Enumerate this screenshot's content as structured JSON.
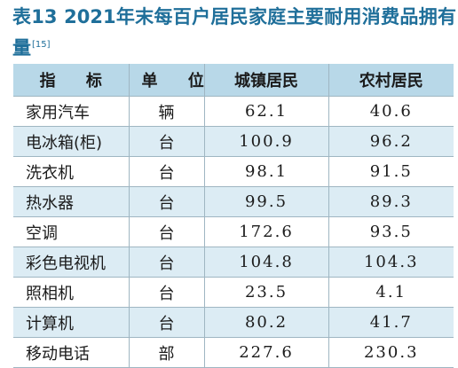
{
  "title": {
    "text": "表13  2021年末每百户居民家庭主要耐用消费品拥有量",
    "ref": "[15]"
  },
  "table": {
    "headers": [
      "指 标",
      "单 位",
      "城镇居民",
      "农村居民"
    ],
    "rows": [
      {
        "item": "家用汽车",
        "unit": "辆",
        "urban": "62.1",
        "rural": "40.6"
      },
      {
        "item": "电冰箱(柜)",
        "unit": "台",
        "urban": "100.9",
        "rural": "96.2"
      },
      {
        "item": "洗衣机",
        "unit": "台",
        "urban": "98.1",
        "rural": "91.5"
      },
      {
        "item": "热水器",
        "unit": "台",
        "urban": "99.5",
        "rural": "89.3"
      },
      {
        "item": "空调",
        "unit": "台",
        "urban": "172.6",
        "rural": "93.5"
      },
      {
        "item": "彩色电视机",
        "unit": "台",
        "urban": "104.8",
        "rural": "104.3"
      },
      {
        "item": "照相机",
        "unit": "台",
        "urban": "23.5",
        "rural": "4.1"
      },
      {
        "item": "计算机",
        "unit": "台",
        "urban": "80.2",
        "rural": "41.7"
      },
      {
        "item": "移动电话",
        "unit": "部",
        "urban": "227.6",
        "rural": "230.3"
      }
    ]
  },
  "colors": {
    "title": "#1f6f9a",
    "header_bg": "#b8d8e8",
    "stripe_bg": "#dcecf4",
    "border": "#9fb6c2"
  }
}
